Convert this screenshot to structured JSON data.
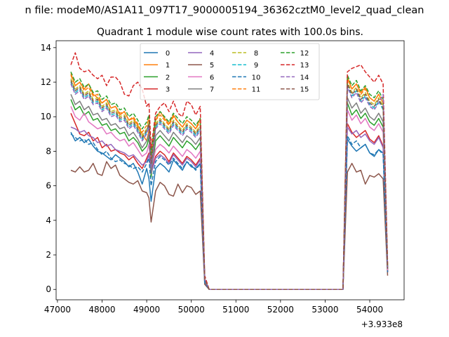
{
  "chart_data": {
    "type": "line",
    "suptitle": "n file: modeM0/AS1A11_097T17_9000005194_36362cztM0_level2_quad_clean",
    "title": "Quadrant 1 module wise count rates with 100.0s bins.",
    "xlabel": "",
    "ylabel": "",
    "x_offset_label": "+3.933e8",
    "xlim": [
      46970,
      54770
    ],
    "ylim": [
      -0.6,
      14.4
    ],
    "x_ticks": [
      47000,
      48000,
      49000,
      50000,
      51000,
      52000,
      53000,
      54000
    ],
    "y_ticks": [
      0,
      2,
      4,
      6,
      8,
      10,
      12,
      14
    ],
    "x_tick_labels": [
      "47000",
      "48000",
      "49000",
      "50000",
      "51000",
      "52000",
      "53000",
      "54000"
    ],
    "y_tick_labels": [
      "0",
      "2",
      "4",
      "6",
      "8",
      "10",
      "12",
      "14"
    ],
    "legend_position": "upper-center",
    "series_x_points": {
      "segment1": [
        47300,
        47400,
        47500,
        47600,
        47700,
        47800,
        47900,
        48000,
        48100,
        48200,
        48300,
        48400,
        48500,
        48600,
        48700,
        48800,
        48900,
        49000,
        49050,
        49100,
        49200,
        49300,
        49400,
        49500,
        49600,
        49700,
        49800,
        49900,
        50000,
        50100,
        50200
      ],
      "gap": [
        50300,
        50400,
        53400
      ],
      "segment2": [
        53500,
        53600,
        53700,
        53800,
        53900,
        54000,
        54100,
        54200,
        54300,
        54400
      ]
    },
    "series": [
      {
        "name": "0",
        "color": "#1f77b4",
        "dash": "solid",
        "seg1": [
          9.1,
          8.6,
          8.8,
          8.5,
          8.7,
          8.3,
          8.0,
          7.9,
          7.7,
          7.5,
          7.8,
          7.6,
          7.4,
          7.1,
          7.3,
          6.8,
          6.1,
          7.0,
          6.4,
          5.1,
          7.0,
          7.3,
          7.1,
          6.8,
          7.5,
          7.2,
          6.9,
          7.4,
          7.1,
          7.0,
          7.3
        ],
        "gap": [
          0.4,
          0.0,
          0.0
        ],
        "seg2": [
          8.7,
          8.3,
          8.0,
          8.2,
          8.4,
          7.9,
          7.7,
          8.1,
          7.9,
          1.0
        ]
      },
      {
        "name": "1",
        "color": "#ff7f0e",
        "dash": "solid",
        "seg1": [
          12.5,
          11.8,
          12.0,
          11.6,
          11.9,
          11.3,
          11.1,
          10.8,
          11.0,
          10.5,
          10.6,
          10.1,
          10.3,
          9.8,
          9.9,
          9.5,
          9.0,
          8.6,
          9.2,
          7.5,
          9.8,
          10.3,
          9.9,
          9.6,
          10.1,
          9.7,
          9.4,
          9.8,
          9.6,
          9.3,
          9.9
        ],
        "gap": [
          0.6,
          0.0,
          0.0
        ],
        "seg2": [
          12.3,
          11.6,
          11.9,
          11.4,
          11.7,
          11.1,
          10.9,
          11.3,
          10.8,
          1.3
        ]
      },
      {
        "name": "2",
        "color": "#2ca02c",
        "dash": "solid",
        "seg1": [
          11.0,
          10.4,
          10.6,
          10.1,
          10.3,
          9.8,
          9.9,
          9.5,
          9.6,
          9.2,
          9.3,
          9.0,
          9.1,
          8.6,
          8.8,
          8.5,
          8.0,
          8.3,
          8.8,
          6.5,
          8.6,
          8.9,
          8.6,
          8.3,
          8.8,
          8.5,
          8.2,
          8.6,
          8.4,
          8.1,
          8.5
        ],
        "gap": [
          0.5,
          0.0,
          0.0
        ],
        "seg2": [
          10.8,
          10.1,
          10.4,
          9.9,
          10.2,
          9.7,
          9.5,
          9.9,
          9.4,
          1.1
        ]
      },
      {
        "name": "3",
        "color": "#d62728",
        "dash": "solid",
        "seg1": [
          10.2,
          9.6,
          9.0,
          8.9,
          9.1,
          8.6,
          8.8,
          8.2,
          8.4,
          8.0,
          8.1,
          7.9,
          7.8,
          7.5,
          7.7,
          7.3,
          7.0,
          7.6,
          7.9,
          6.8,
          7.7,
          8.0,
          7.8,
          7.4,
          7.9,
          7.6,
          7.3,
          7.7,
          7.5,
          7.2,
          7.6
        ],
        "gap": [
          0.5,
          0.0,
          0.0
        ],
        "seg2": [
          9.6,
          9.1,
          8.8,
          9.0,
          9.2,
          8.7,
          8.5,
          8.9,
          8.3,
          1.0
        ]
      },
      {
        "name": "4",
        "color": "#9467bd",
        "dash": "solid",
        "seg1": [
          9.4,
          9.3,
          9.1,
          9.2,
          8.9,
          8.8,
          8.5,
          8.6,
          8.3,
          8.4,
          8.1,
          8.0,
          7.9,
          7.7,
          7.8,
          7.5,
          7.2,
          7.4,
          7.8,
          6.7,
          7.6,
          7.8,
          7.6,
          7.3,
          7.8,
          7.5,
          7.2,
          7.6,
          7.4,
          7.1,
          7.5
        ],
        "gap": [
          0.5,
          0.0,
          0.0
        ],
        "seg2": [
          9.4,
          9.0,
          9.2,
          8.8,
          9.0,
          8.6,
          8.4,
          8.8,
          8.2,
          1.0
        ]
      },
      {
        "name": "5",
        "color": "#8c564b",
        "dash": "solid",
        "seg1": [
          6.9,
          6.8,
          7.1,
          6.8,
          6.9,
          7.3,
          6.7,
          6.6,
          7.4,
          7.0,
          7.2,
          6.6,
          6.4,
          6.2,
          6.1,
          6.3,
          5.7,
          5.6,
          5.3,
          3.9,
          5.7,
          6.2,
          6.0,
          5.5,
          5.4,
          6.1,
          5.6,
          6.0,
          5.9,
          5.5,
          5.7
        ],
        "gap": [
          0.3,
          0.0,
          0.0
        ],
        "seg2": [
          6.8,
          7.3,
          6.8,
          6.9,
          6.1,
          6.6,
          6.5,
          6.7,
          6.4,
          0.8
        ]
      },
      {
        "name": "6",
        "color": "#e377c2",
        "dash": "solid",
        "seg1": [
          10.6,
          10.0,
          9.8,
          10.2,
          9.7,
          9.5,
          9.3,
          9.4,
          9.0,
          9.1,
          8.8,
          8.6,
          8.7,
          8.3,
          8.5,
          8.1,
          7.7,
          7.9,
          8.4,
          6.9,
          8.1,
          8.4,
          8.2,
          7.9,
          8.3,
          8.0,
          7.7,
          8.1,
          7.9,
          7.6,
          8.0
        ],
        "gap": [
          0.5,
          0.0,
          0.0
        ],
        "seg2": [
          10.4,
          9.8,
          10.1,
          9.6,
          9.9,
          9.4,
          9.2,
          9.6,
          9.1,
          1.1
        ]
      },
      {
        "name": "7",
        "color": "#7f7f7f",
        "dash": "solid",
        "seg1": [
          11.3,
          10.7,
          10.9,
          10.4,
          10.6,
          10.1,
          10.2,
          9.8,
          9.9,
          9.5,
          9.6,
          9.3,
          9.4,
          8.9,
          9.1,
          8.7,
          8.2,
          8.6,
          9.0,
          6.7,
          8.9,
          9.2,
          8.9,
          8.6,
          9.1,
          8.8,
          8.5,
          8.9,
          8.7,
          8.4,
          8.8
        ],
        "gap": [
          0.6,
          0.0,
          0.0
        ],
        "seg2": [
          11.1,
          10.5,
          10.8,
          10.2,
          10.5,
          10.0,
          9.8,
          10.2,
          9.7,
          1.2
        ]
      },
      {
        "name": "8",
        "color": "#bcbd22",
        "dash": "dashed",
        "seg1": [
          12.2,
          11.6,
          11.8,
          11.3,
          11.5,
          11.0,
          11.1,
          10.6,
          10.8,
          10.3,
          10.4,
          10.0,
          10.1,
          9.6,
          9.8,
          9.4,
          8.9,
          9.3,
          9.7,
          7.4,
          9.6,
          9.9,
          9.6,
          9.3,
          9.8,
          9.5,
          9.2,
          9.6,
          9.4,
          9.1,
          9.5
        ],
        "gap": [
          0.6,
          0.0,
          0.0
        ],
        "seg2": [
          12.0,
          11.4,
          11.7,
          11.1,
          11.4,
          10.9,
          10.7,
          11.1,
          10.6,
          1.3
        ]
      },
      {
        "name": "9",
        "color": "#17becf",
        "dash": "dashed",
        "seg1": [
          12.0,
          11.4,
          11.6,
          11.1,
          11.3,
          10.8,
          10.9,
          10.4,
          10.6,
          10.1,
          10.2,
          9.8,
          9.9,
          9.4,
          9.6,
          9.2,
          8.7,
          9.1,
          9.5,
          7.2,
          9.4,
          9.7,
          9.4,
          9.1,
          9.6,
          9.3,
          9.0,
          9.4,
          9.2,
          8.9,
          9.3
        ],
        "gap": [
          0.6,
          0.0,
          0.0
        ],
        "seg2": [
          11.8,
          11.2,
          11.5,
          10.9,
          11.2,
          10.7,
          10.5,
          10.9,
          10.4,
          1.2
        ]
      },
      {
        "name": "10",
        "color": "#1f77b4",
        "dash": "dashed",
        "seg1": [
          9.0,
          8.8,
          8.6,
          8.7,
          8.4,
          8.5,
          8.1,
          7.8,
          8.0,
          7.6,
          7.4,
          7.5,
          7.3,
          7.2,
          7.0,
          7.1,
          6.8,
          7.3,
          7.6,
          6.0,
          7.4,
          7.7,
          7.5,
          7.2,
          7.6,
          7.3,
          7.0,
          7.4,
          7.2,
          6.9,
          7.3
        ],
        "gap": [
          0.4,
          0.0,
          0.0
        ],
        "seg2": [
          8.9,
          8.4,
          8.6,
          8.2,
          8.4,
          7.9,
          7.8,
          8.1,
          7.8,
          1.0
        ]
      },
      {
        "name": "11",
        "color": "#ff7f0e",
        "dash": "dashed",
        "seg1": [
          12.4,
          11.8,
          12.0,
          11.5,
          11.7,
          11.2,
          11.3,
          10.8,
          11.0,
          10.5,
          10.6,
          10.2,
          10.3,
          9.8,
          10.0,
          9.6,
          9.1,
          9.5,
          9.9,
          7.6,
          9.8,
          10.1,
          9.8,
          9.5,
          10.0,
          9.7,
          9.4,
          9.8,
          9.6,
          9.3,
          9.7
        ],
        "gap": [
          0.6,
          0.0,
          0.0
        ],
        "seg2": [
          12.2,
          11.6,
          11.9,
          11.3,
          11.6,
          11.1,
          10.9,
          11.3,
          10.8,
          1.3
        ]
      },
      {
        "name": "12",
        "color": "#2ca02c",
        "dash": "dashed",
        "seg1": [
          12.6,
          12.0,
          12.2,
          11.7,
          11.9,
          11.4,
          11.5,
          11.0,
          11.2,
          10.7,
          10.8,
          10.4,
          10.5,
          10.0,
          10.2,
          9.8,
          9.3,
          9.7,
          10.1,
          7.8,
          10.0,
          10.3,
          10.0,
          9.7,
          10.2,
          9.9,
          9.6,
          10.0,
          9.8,
          9.5,
          9.9
        ],
        "gap": [
          0.6,
          0.0,
          0.0
        ],
        "seg2": [
          12.4,
          11.8,
          12.1,
          11.5,
          11.8,
          11.3,
          11.1,
          11.5,
          11.0,
          1.3
        ]
      },
      {
        "name": "13",
        "color": "#d62728",
        "dash": "dashed",
        "seg1": [
          13.0,
          13.7,
          12.8,
          12.6,
          12.7,
          12.4,
          12.2,
          12.4,
          11.8,
          12.3,
          12.3,
          12.0,
          11.3,
          11.2,
          11.8,
          12.0,
          11.6,
          10.6,
          10.8,
          8.2,
          10.2,
          10.6,
          10.8,
          10.3,
          10.9,
          10.2,
          10.0,
          10.9,
          10.7,
          10.1,
          10.6
        ],
        "gap": [
          0.8,
          0.0,
          0.0
        ],
        "seg2": [
          12.6,
          12.8,
          12.9,
          13.0,
          12.6,
          12.3,
          12.0,
          12.4,
          11.9,
          1.5
        ]
      },
      {
        "name": "14",
        "color": "#9467bd",
        "dash": "dashed",
        "seg1": [
          11.9,
          11.3,
          11.5,
          11.0,
          11.2,
          10.7,
          10.8,
          10.3,
          10.5,
          10.0,
          10.1,
          9.7,
          9.8,
          9.3,
          9.5,
          9.1,
          8.6,
          9.0,
          9.4,
          7.1,
          9.3,
          9.6,
          9.3,
          9.0,
          9.5,
          9.2,
          8.9,
          9.3,
          9.1,
          8.8,
          9.2
        ],
        "gap": [
          0.6,
          0.0,
          0.0
        ],
        "seg2": [
          11.7,
          11.1,
          11.4,
          10.8,
          11.1,
          10.6,
          10.4,
          10.8,
          11.3,
          1.2
        ]
      },
      {
        "name": "15",
        "color": "#8c564b",
        "dash": "dashed",
        "seg1": [
          12.1,
          11.5,
          11.7,
          11.2,
          11.4,
          10.9,
          11.0,
          10.5,
          10.7,
          10.2,
          10.3,
          9.9,
          10.0,
          9.5,
          9.7,
          9.3,
          8.8,
          9.2,
          9.6,
          7.3,
          9.5,
          9.8,
          9.5,
          9.2,
          9.7,
          9.4,
          9.1,
          9.5,
          9.3,
          9.0,
          9.4
        ],
        "gap": [
          0.6,
          0.0,
          0.0
        ],
        "seg2": [
          11.9,
          11.3,
          11.6,
          11.0,
          11.3,
          10.8,
          10.6,
          11.0,
          10.5,
          1.2
        ]
      }
    ]
  }
}
